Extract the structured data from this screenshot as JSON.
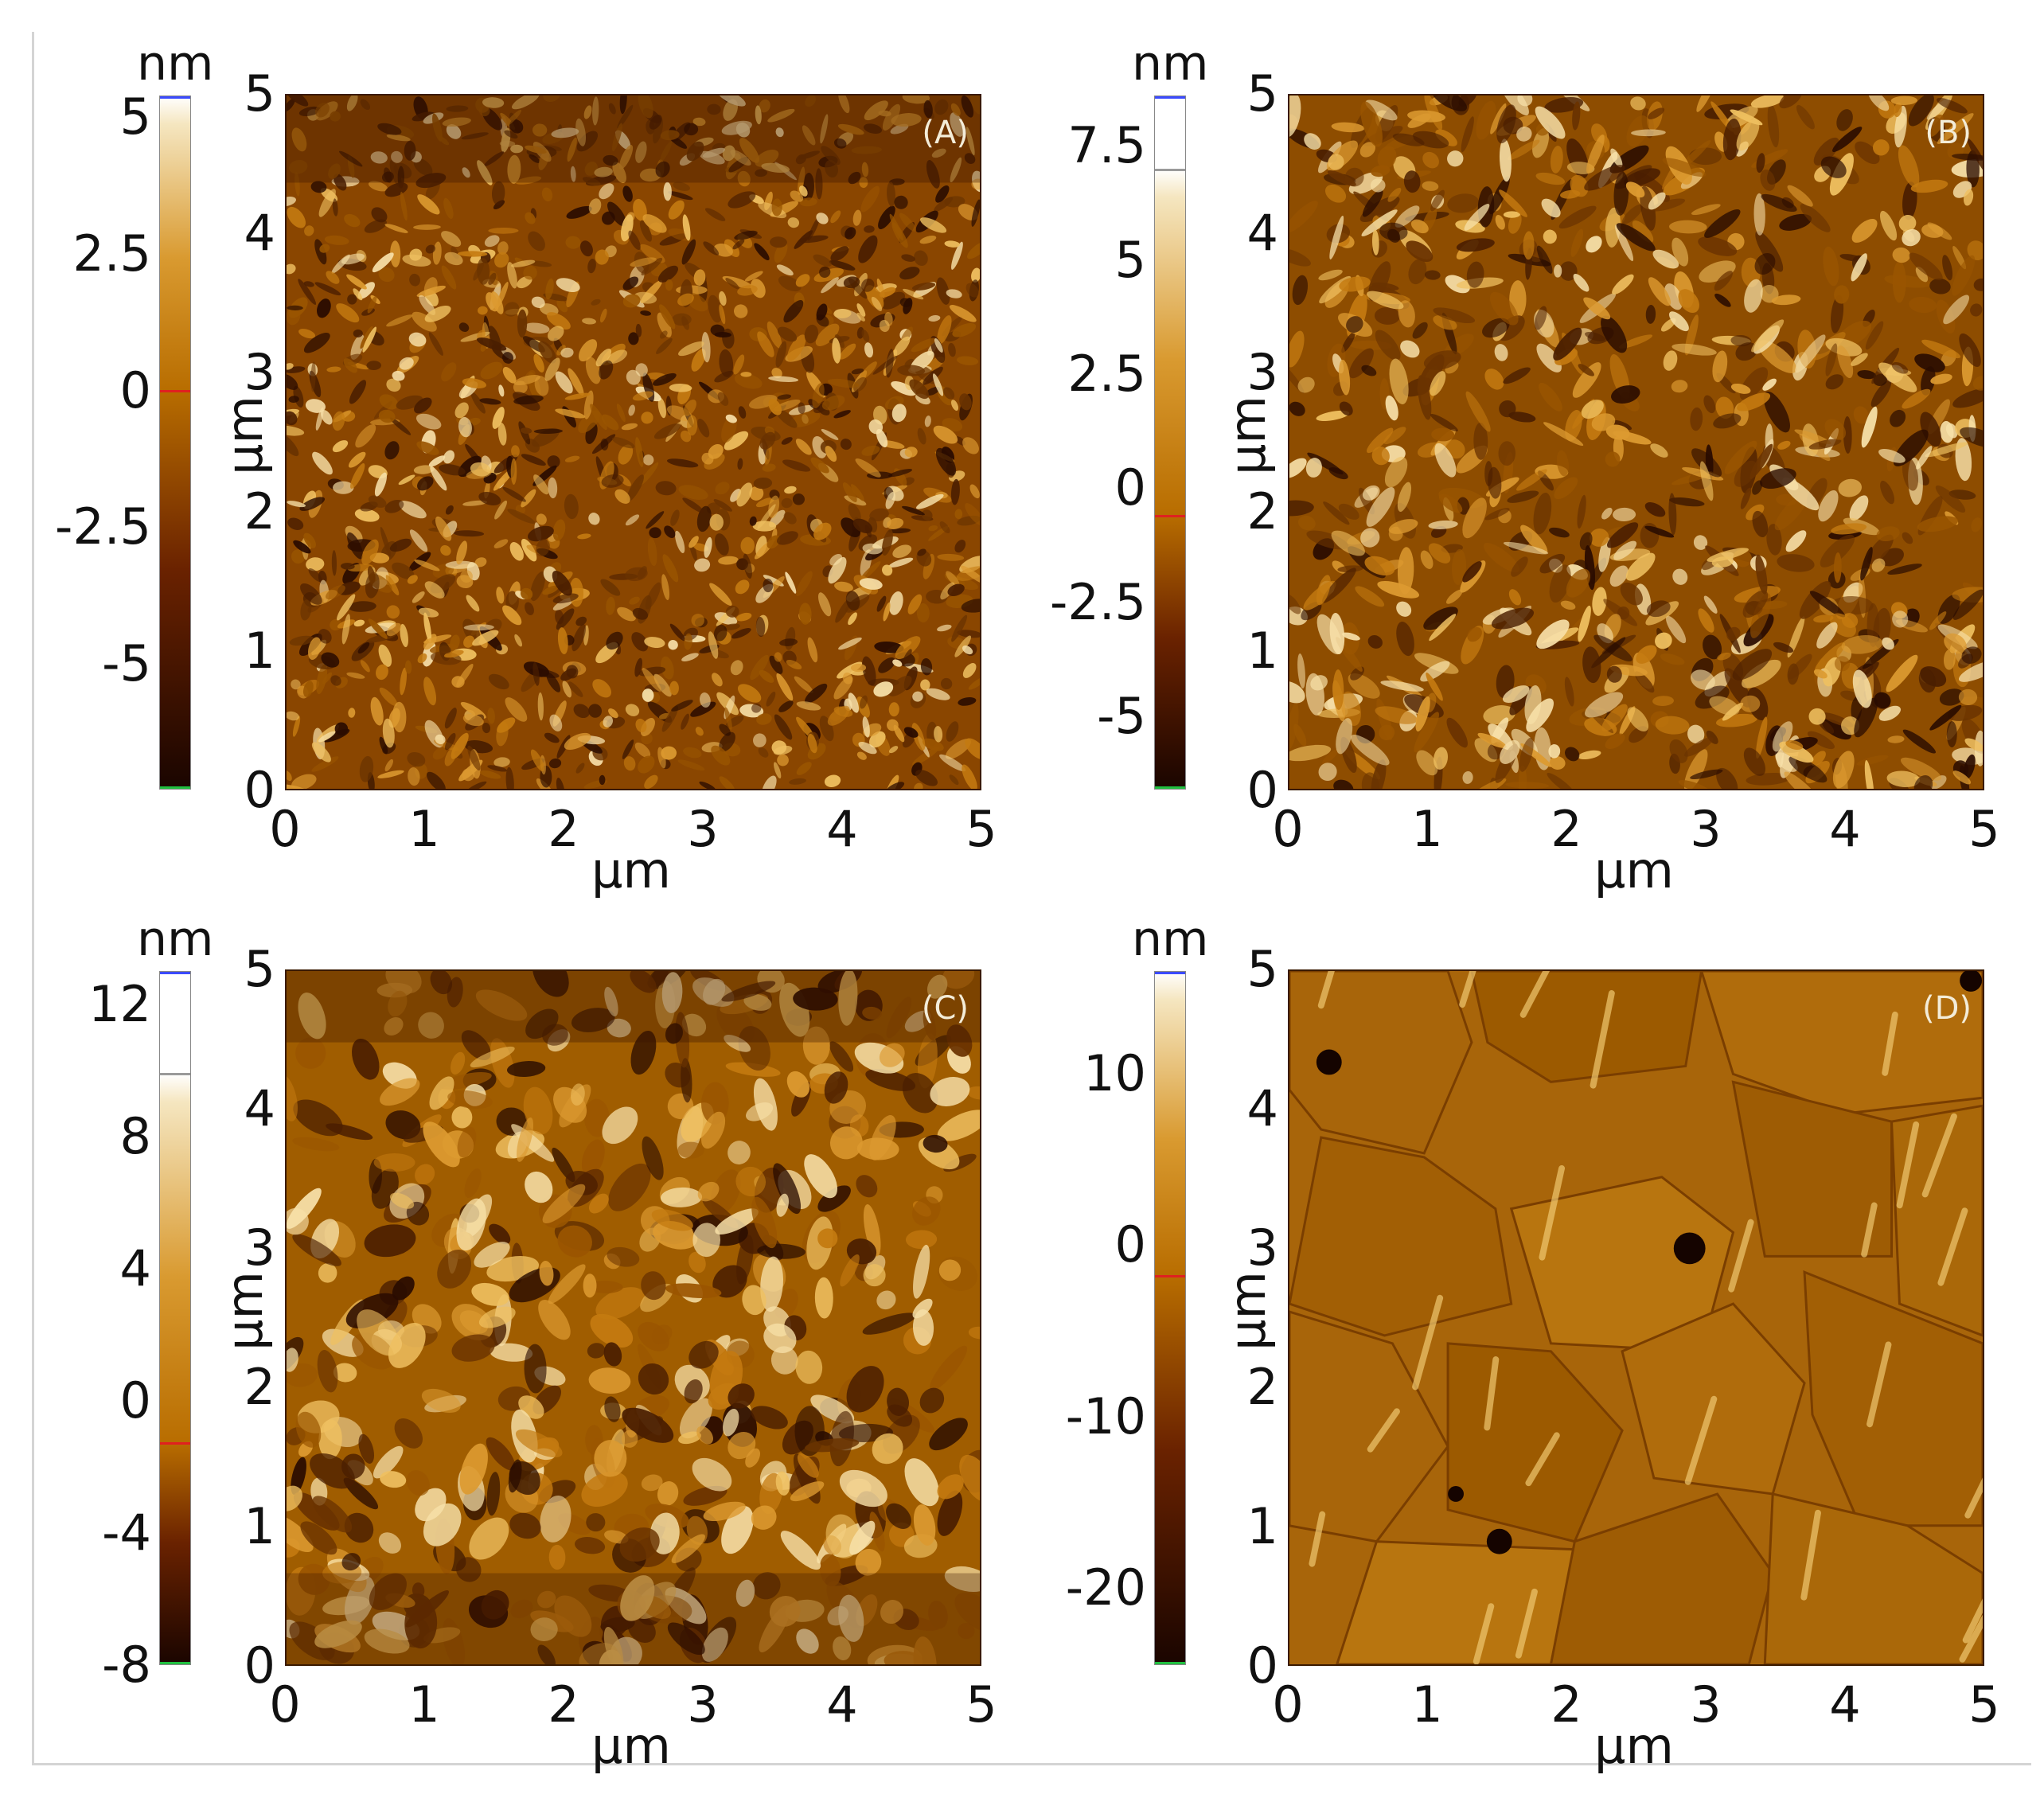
{
  "figure": {
    "panels": [
      {
        "id": "A",
        "label": "(A)",
        "colorbar": {
          "unit": "nm",
          "ticks": [
            "5",
            "2.5",
            "0",
            "-2.5",
            "-5"
          ],
          "min": -7.3,
          "max": 5.4,
          "zero_marker": 0
        },
        "y_axis": {
          "label": "µm",
          "ticks": [
            "0",
            "1",
            "2",
            "3",
            "4",
            "5"
          ]
        },
        "x_axis": {
          "label": "µm",
          "ticks": [
            "0",
            "1",
            "2",
            "3",
            "4",
            "5"
          ]
        }
      },
      {
        "id": "B",
        "label": "(B)",
        "colorbar": {
          "unit": "nm",
          "ticks": [
            "7.5",
            "5",
            "2.5",
            "0",
            "-2.5",
            "-5"
          ],
          "min": -6.6,
          "max": 8.6,
          "zero_marker": -0.6,
          "sat_marker": 7.0
        },
        "y_axis": {
          "label": "µm",
          "ticks": [
            "0",
            "1",
            "2",
            "3",
            "4",
            "5"
          ]
        },
        "x_axis": {
          "label": "µm",
          "ticks": [
            "0",
            "1",
            "2",
            "3",
            "4",
            "5"
          ]
        }
      },
      {
        "id": "C",
        "label": "(C)",
        "colorbar": {
          "unit": "nm",
          "ticks": [
            "12",
            "8",
            "4",
            "0",
            "-4",
            "-8"
          ],
          "min": -8,
          "max": 13,
          "zero_marker": -1.3,
          "sat_marker": 9.9
        },
        "y_axis": {
          "label": "µm",
          "ticks": [
            "0",
            "1",
            "2",
            "3",
            "4",
            "5"
          ]
        },
        "x_axis": {
          "label": "µm",
          "ticks": [
            "0",
            "1",
            "2",
            "3",
            "4",
            "5"
          ]
        }
      },
      {
        "id": "D",
        "label": "(D)",
        "colorbar": {
          "unit": "nm",
          "ticks": [
            "10",
            "0",
            "-10",
            "-20"
          ],
          "min": -24.5,
          "max": 16,
          "zero_marker": -1.8
        },
        "y_axis": {
          "label": "µm",
          "ticks": [
            "0",
            "1",
            "2",
            "3",
            "4",
            "5"
          ]
        },
        "x_axis": {
          "label": "µm",
          "ticks": [
            "0",
            "1",
            "2",
            "3",
            "4",
            "5"
          ]
        }
      }
    ],
    "colors": {
      "afm_dark": "#1a0500",
      "afm_mid": "#b86d00",
      "afm_light": "#f5e6c0",
      "max_marker": "#3b4bff",
      "zero_marker": "#e02020",
      "min_marker": "#20c040"
    }
  }
}
